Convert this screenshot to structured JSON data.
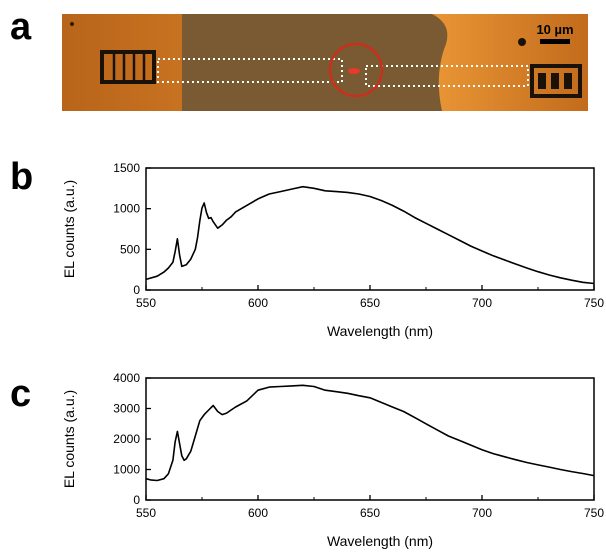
{
  "panels": {
    "a": {
      "letter": "a",
      "scale_bar_label": "10 µm"
    },
    "b": {
      "letter": "b"
    },
    "c": {
      "letter": "c"
    }
  },
  "chart_data": [
    {
      "type": "line",
      "panel": "b",
      "title": "",
      "xlabel": "Wavelength (nm)",
      "ylabel": "EL counts (a.u.)",
      "xlim": [
        550,
        750
      ],
      "ylim": [
        0,
        1500
      ],
      "xticks": [
        550,
        600,
        650,
        700,
        750
      ],
      "yticks": [
        0,
        500,
        1000,
        1500
      ],
      "grid": false,
      "series": [
        {
          "x": [
            550,
            555,
            558,
            560,
            562,
            563,
            564,
            565,
            566,
            568,
            570,
            572,
            573,
            574,
            575,
            576,
            577,
            578,
            579,
            580,
            582,
            584,
            586,
            588,
            590,
            595,
            600,
            605,
            610,
            615,
            620,
            625,
            630,
            635,
            640,
            645,
            650,
            655,
            660,
            665,
            670,
            675,
            680,
            685,
            690,
            695,
            700,
            705,
            710,
            715,
            720,
            725,
            730,
            735,
            740,
            745,
            750
          ],
          "y": [
            130,
            170,
            220,
            270,
            340,
            470,
            630,
            430,
            290,
            310,
            380,
            500,
            640,
            850,
            1010,
            1070,
            950,
            880,
            890,
            840,
            760,
            800,
            860,
            900,
            960,
            1040,
            1120,
            1180,
            1210,
            1240,
            1270,
            1250,
            1220,
            1210,
            1200,
            1180,
            1150,
            1100,
            1040,
            970,
            890,
            820,
            750,
            680,
            610,
            540,
            480,
            420,
            370,
            320,
            270,
            225,
            185,
            150,
            120,
            95,
            80
          ]
        }
      ]
    },
    {
      "type": "line",
      "panel": "c",
      "title": "",
      "xlabel": "Wavelength (nm)",
      "ylabel": "EL counts (a.u.)",
      "xlim": [
        550,
        750
      ],
      "ylim": [
        0,
        4000
      ],
      "xticks": [
        550,
        600,
        650,
        700,
        750
      ],
      "yticks": [
        0,
        1000,
        2000,
        3000,
        4000
      ],
      "grid": false,
      "series": [
        {
          "x": [
            550,
            552,
            555,
            558,
            560,
            562,
            563,
            564,
            565,
            566,
            567,
            568,
            570,
            572,
            574,
            576,
            578,
            580,
            582,
            584,
            586,
            588,
            590,
            595,
            600,
            605,
            610,
            615,
            620,
            625,
            630,
            635,
            640,
            645,
            650,
            655,
            660,
            665,
            670,
            675,
            680,
            685,
            690,
            695,
            700,
            705,
            710,
            715,
            720,
            725,
            730,
            735,
            740,
            745,
            750
          ],
          "y": [
            700,
            660,
            640,
            700,
            860,
            1300,
            1900,
            2250,
            1850,
            1450,
            1300,
            1350,
            1600,
            2100,
            2600,
            2800,
            2950,
            3100,
            2900,
            2800,
            2850,
            2950,
            3050,
            3250,
            3600,
            3700,
            3720,
            3740,
            3760,
            3720,
            3600,
            3550,
            3500,
            3420,
            3350,
            3200,
            3050,
            2900,
            2700,
            2500,
            2300,
            2100,
            1950,
            1800,
            1650,
            1520,
            1420,
            1320,
            1230,
            1150,
            1080,
            1000,
            930,
            870,
            800
          ]
        }
      ]
    }
  ]
}
